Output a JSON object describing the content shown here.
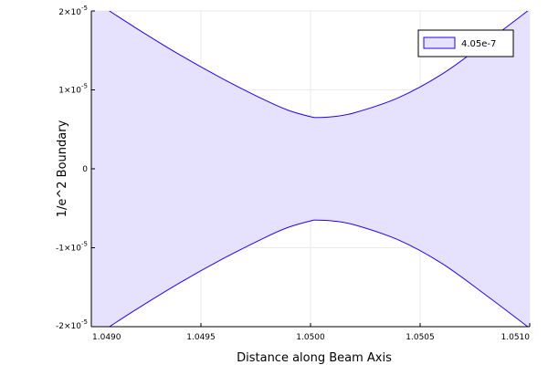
{
  "colors": {
    "line": "#2b00e8",
    "fill": "#e6e1fd",
    "grid": "#ebebeb",
    "axis": "#000000"
  },
  "chart_data": {
    "type": "area",
    "xlabel": "Distance along Beam Axis",
    "ylabel": "1/e^2 Boundary",
    "xlim": [
      1.049,
      1.051
    ],
    "ylim": [
      -2e-05,
      2e-05
    ],
    "grid": true,
    "legend_position": "top-right",
    "x_ticks": [
      {
        "value": 1.049,
        "label": "1.0490"
      },
      {
        "value": 1.0495,
        "label": "1.0495"
      },
      {
        "value": 1.05,
        "label": "1.0500"
      },
      {
        "value": 1.0505,
        "label": "1.0505"
      },
      {
        "value": 1.051,
        "label": "1.0510"
      }
    ],
    "y_ticks": [
      {
        "value": 2e-05,
        "mantissa": "2×10",
        "exp": "-5",
        "prefix": ""
      },
      {
        "value": 1e-05,
        "mantissa": "1×10",
        "exp": "-5",
        "prefix": ""
      },
      {
        "value": 0,
        "mantissa": "0",
        "exp": "",
        "prefix": ""
      },
      {
        "value": -1e-05,
        "mantissa": "-1×10",
        "exp": "-5",
        "prefix": ""
      },
      {
        "value": -2e-05,
        "mantissa": "-2×10",
        "exp": "-5",
        "prefix": ""
      }
    ],
    "series": [
      {
        "name": "4.05e-7",
        "x": [
          1.049,
          1.0492,
          1.0494,
          1.0496,
          1.0498,
          1.0499,
          1.05,
          1.05003,
          1.0501,
          1.0502,
          1.0504,
          1.0506,
          1.0508,
          1.051
        ],
        "upper": [
          2.15e-05,
          1.79e-05,
          1.45e-05,
          1.14e-05,
          8.6e-06,
          7.4e-06,
          6.6e-06,
          6.5e-06,
          6.6e-06,
          7.1e-06,
          9e-06,
          1.2e-05,
          1.6e-05,
          2.02e-05
        ],
        "lower": [
          -2.15e-05,
          -1.79e-05,
          -1.45e-05,
          -1.14e-05,
          -8.6e-06,
          -7.4e-06,
          -6.6e-06,
          -6.5e-06,
          -6.6e-06,
          -7.1e-06,
          -9e-06,
          -1.2e-05,
          -1.6e-05,
          -2.02e-05
        ]
      }
    ]
  }
}
